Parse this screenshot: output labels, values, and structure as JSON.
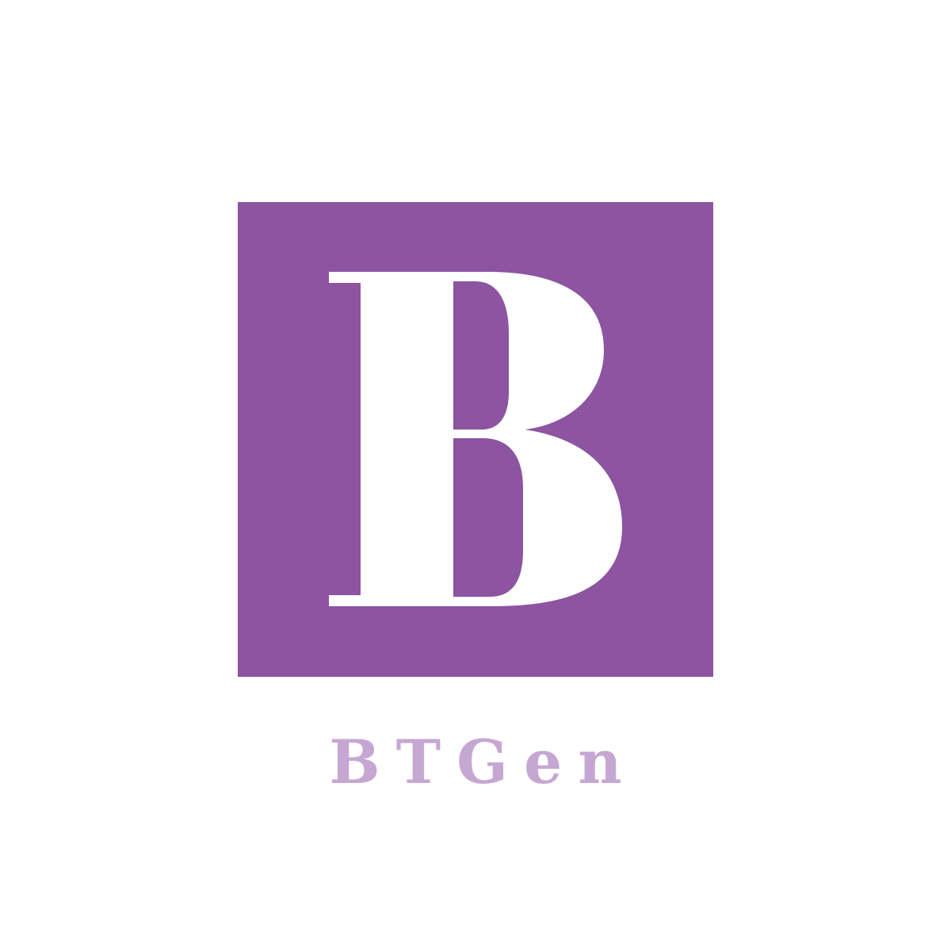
{
  "logo": {
    "monogram": "B",
    "wordmark": "BTGen",
    "colors": {
      "background": "#ffffff",
      "square": "#8c54a1",
      "monogram": "#ffffff",
      "wordmark": "#c6a7d3"
    },
    "icon": "letter-b-monogram"
  }
}
